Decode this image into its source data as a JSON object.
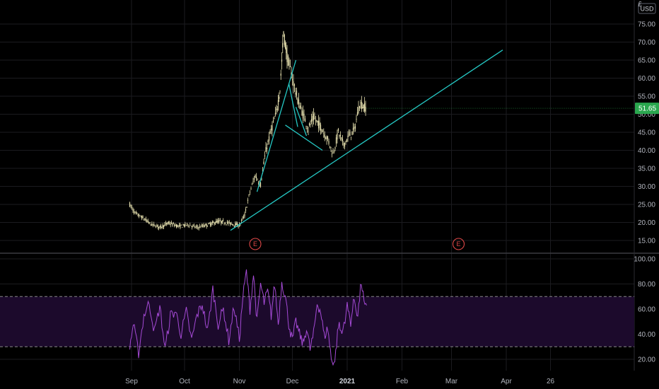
{
  "currency_label": "USD",
  "corner_label": "£",
  "last_price_label": "51.65",
  "earnings_marker_label": "E",
  "colors": {
    "background": "#000000",
    "grid": "#1b1b1f",
    "candles": "#e8e2b0",
    "trendline": "#25c8c4",
    "rsi_line": "#a54ad6",
    "rsi_band": "#1c0a2c",
    "rsi_levels": "#888888",
    "price_tag": "#2aa64e",
    "earnings": "#e04848",
    "axis_text": "#b2b5be"
  },
  "chart_data": [
    {
      "type": "candlestick",
      "title": "",
      "series_name": "",
      "x_axis": {
        "type": "date",
        "tick_labels": [
          "Sep",
          "Oct",
          "Nov",
          "Dec",
          "2021",
          "Feb",
          "Mar",
          "Apr",
          "26"
        ],
        "tick_dates": [
          "2020-09-01",
          "2020-10-01",
          "2020-11-01",
          "2020-12-01",
          "2021-01-01",
          "2021-02-01",
          "2021-03-01",
          "2021-04-01",
          "2021-04-26"
        ],
        "range": [
          "2020-08-20",
          "2021-05-20"
        ]
      },
      "y_axis": {
        "side": "right",
        "range": [
          12,
          78
        ],
        "tick_labels": [
          "15.00",
          "20.00",
          "25.00",
          "30.00",
          "35.00",
          "40.00",
          "45.00",
          "50.00",
          "55.00",
          "60.00",
          "65.00",
          "70.00",
          "75.00"
        ],
        "tick_values": [
          15,
          20,
          25,
          30,
          35,
          40,
          45,
          50,
          55,
          60,
          65,
          70,
          75
        ]
      },
      "grid": true,
      "close_path": [
        [
          "2020-08-31",
          25.0
        ],
        [
          "2020-09-03",
          22.5
        ],
        [
          "2020-09-08",
          21.0
        ],
        [
          "2020-09-12",
          19.5
        ],
        [
          "2020-09-17",
          18.7
        ],
        [
          "2020-09-22",
          19.8
        ],
        [
          "2020-09-28",
          18.9
        ],
        [
          "2020-10-03",
          19.4
        ],
        [
          "2020-10-08",
          18.6
        ],
        [
          "2020-10-14",
          19.3
        ],
        [
          "2020-10-20",
          20.3
        ],
        [
          "2020-10-24",
          20.0
        ],
        [
          "2020-10-28",
          19.6
        ],
        [
          "2020-11-01",
          19.2
        ],
        [
          "2020-11-04",
          22.0
        ],
        [
          "2020-11-07",
          28.5
        ],
        [
          "2020-11-10",
          33.0
        ],
        [
          "2020-11-13",
          30.5
        ],
        [
          "2020-11-16",
          40.0
        ],
        [
          "2020-11-19",
          45.5
        ],
        [
          "2020-11-22",
          50.5
        ],
        [
          "2020-11-24",
          57.0
        ],
        [
          "2020-11-26",
          72.5
        ],
        [
          "2020-11-28",
          66.0
        ],
        [
          "2020-12-01",
          60.0
        ],
        [
          "2020-12-04",
          54.0
        ],
        [
          "2020-12-07",
          50.0
        ],
        [
          "2020-12-10",
          46.0
        ],
        [
          "2020-12-13",
          49.0
        ],
        [
          "2020-12-17",
          46.5
        ],
        [
          "2020-12-21",
          43.0
        ],
        [
          "2020-12-24",
          39.0
        ],
        [
          "2020-12-27",
          45.0
        ],
        [
          "2020-12-30",
          41.5
        ],
        [
          "2021-01-02",
          44.0
        ],
        [
          "2021-01-05",
          45.5
        ],
        [
          "2021-01-08",
          53.0
        ],
        [
          "2021-01-12",
          51.65
        ]
      ],
      "earnings_events": [
        "2020-11-10",
        "2021-03-05"
      ],
      "last_price": 51.65,
      "trendlines": [
        {
          "from": [
            "2020-10-27",
            17.8
          ],
          "to": [
            "2021-03-30",
            67.8
          ]
        },
        {
          "from": [
            "2020-11-11",
            28.5
          ],
          "to": [
            "2020-12-03",
            65.0
          ]
        },
        {
          "from": [
            "2020-11-29",
            58.5
          ],
          "to": [
            "2020-12-04",
            46.5
          ]
        },
        {
          "from": [
            "2020-11-27",
            47.0
          ],
          "to": [
            "2020-12-18",
            40.0
          ]
        },
        {
          "from": [
            "2020-12-03",
            52.0
          ],
          "to": [
            "2020-12-09",
            44.0
          ]
        }
      ]
    },
    {
      "type": "line",
      "title": "",
      "series_name": "",
      "y_axis": {
        "side": "right",
        "range": [
          10,
          100
        ],
        "tick_labels": [
          "20.00",
          "40.00",
          "60.00",
          "80.00",
          "100.00"
        ],
        "tick_values": [
          20,
          40,
          60,
          80,
          100
        ]
      },
      "band": [
        30,
        70
      ],
      "levels": [
        30,
        70
      ],
      "grid": true,
      "points": [
        [
          "2020-08-31",
          30
        ],
        [
          "2020-09-02",
          48
        ],
        [
          "2020-09-05",
          25
        ],
        [
          "2020-09-08",
          55
        ],
        [
          "2020-09-11",
          65
        ],
        [
          "2020-09-14",
          42
        ],
        [
          "2020-09-17",
          62
        ],
        [
          "2020-09-20",
          28
        ],
        [
          "2020-09-23",
          55
        ],
        [
          "2020-09-26",
          58
        ],
        [
          "2020-09-29",
          40
        ],
        [
          "2020-10-02",
          58
        ],
        [
          "2020-10-05",
          35
        ],
        [
          "2020-10-08",
          55
        ],
        [
          "2020-10-11",
          64
        ],
        [
          "2020-10-14",
          42
        ],
        [
          "2020-10-17",
          76
        ],
        [
          "2020-10-20",
          48
        ],
        [
          "2020-10-23",
          60
        ],
        [
          "2020-10-26",
          35
        ],
        [
          "2020-10-29",
          62
        ],
        [
          "2020-11-01",
          36
        ],
        [
          "2020-11-03",
          70
        ],
        [
          "2020-11-05",
          90
        ],
        [
          "2020-11-07",
          60
        ],
        [
          "2020-11-09",
          88
        ],
        [
          "2020-11-11",
          50
        ],
        [
          "2020-11-13",
          80
        ],
        [
          "2020-11-15",
          65
        ],
        [
          "2020-11-17",
          74
        ],
        [
          "2020-11-19",
          55
        ],
        [
          "2020-11-21",
          80
        ],
        [
          "2020-11-23",
          48
        ],
        [
          "2020-11-25",
          82
        ],
        [
          "2020-11-27",
          70
        ],
        [
          "2020-11-29",
          48
        ],
        [
          "2020-12-01",
          35
        ],
        [
          "2020-12-03",
          50
        ],
        [
          "2020-12-05",
          40
        ],
        [
          "2020-12-07",
          32
        ],
        [
          "2020-12-09",
          45
        ],
        [
          "2020-12-11",
          28
        ],
        [
          "2020-12-13",
          40
        ],
        [
          "2020-12-15",
          65
        ],
        [
          "2020-12-17",
          58
        ],
        [
          "2020-12-19",
          38
        ],
        [
          "2020-12-21",
          45
        ],
        [
          "2020-12-23",
          20
        ],
        [
          "2020-12-25",
          18
        ],
        [
          "2020-12-27",
          48
        ],
        [
          "2020-12-29",
          40
        ],
        [
          "2021-01-01",
          62
        ],
        [
          "2021-01-03",
          50
        ],
        [
          "2021-01-05",
          68
        ],
        [
          "2021-01-07",
          55
        ],
        [
          "2021-01-09",
          82
        ],
        [
          "2021-01-11",
          60
        ],
        [
          "2021-01-12",
          63
        ]
      ]
    }
  ]
}
